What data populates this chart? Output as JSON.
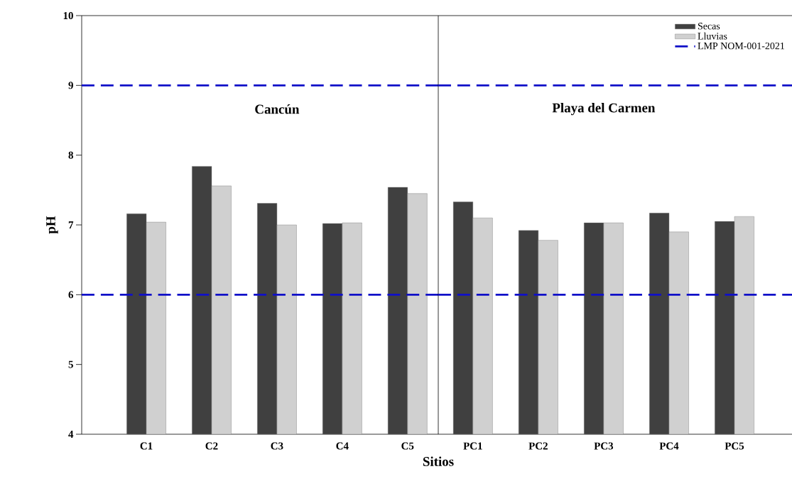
{
  "chart_data": [
    {
      "type": "bar",
      "title": "Cancún",
      "xlabel": "Sitios",
      "ylabel": "pH",
      "categories": [
        "C1",
        "C2",
        "C3",
        "C4",
        "C5"
      ],
      "series": [
        {
          "color": "#404040",
          "values": [
            7.16,
            7.84,
            7.31,
            7.02,
            7.54
          ]
        },
        {
          "color": "#d0d0d0",
          "values": [
            7.04,
            7.56,
            7.0,
            7.03,
            7.45
          ]
        }
      ],
      "ylim": [
        4,
        10
      ],
      "yticks": [
        4,
        5,
        6,
        7,
        8,
        9,
        10
      ],
      "ref_lines": [
        {
          "axis": "y",
          "value": 9,
          "color": "#1010c8",
          "line_style": "dashed"
        },
        {
          "axis": "y",
          "value": 6,
          "color": "#1010c8",
          "line_style": "dashed"
        }
      ],
      "grid": false
    },
    {
      "type": "bar",
      "title": "Playa del Carmen",
      "categories": [
        "PC1",
        "PC2",
        "PC3",
        "PC4",
        "PC5"
      ],
      "series": [
        {
          "name": "Secas",
          "color": "#404040",
          "values": [
            7.33,
            6.92,
            7.03,
            7.17,
            7.05
          ]
        },
        {
          "name": "Lluvias",
          "color": "#d0d0d0",
          "values": [
            7.1,
            6.78,
            7.03,
            6.9,
            7.12
          ]
        }
      ],
      "ylim": [
        4,
        10
      ],
      "tick_labels": "x",
      "ref_lines": [
        {
          "axis": "y",
          "value": 9,
          "label": "LMP NOM-001-2021",
          "color": "#1010c8",
          "line_style": "dashed"
        },
        {
          "axis": "y",
          "value": 6,
          "color": "#1010c8",
          "line_style": "dashed"
        }
      ],
      "legend": "top right",
      "grid": false
    }
  ]
}
